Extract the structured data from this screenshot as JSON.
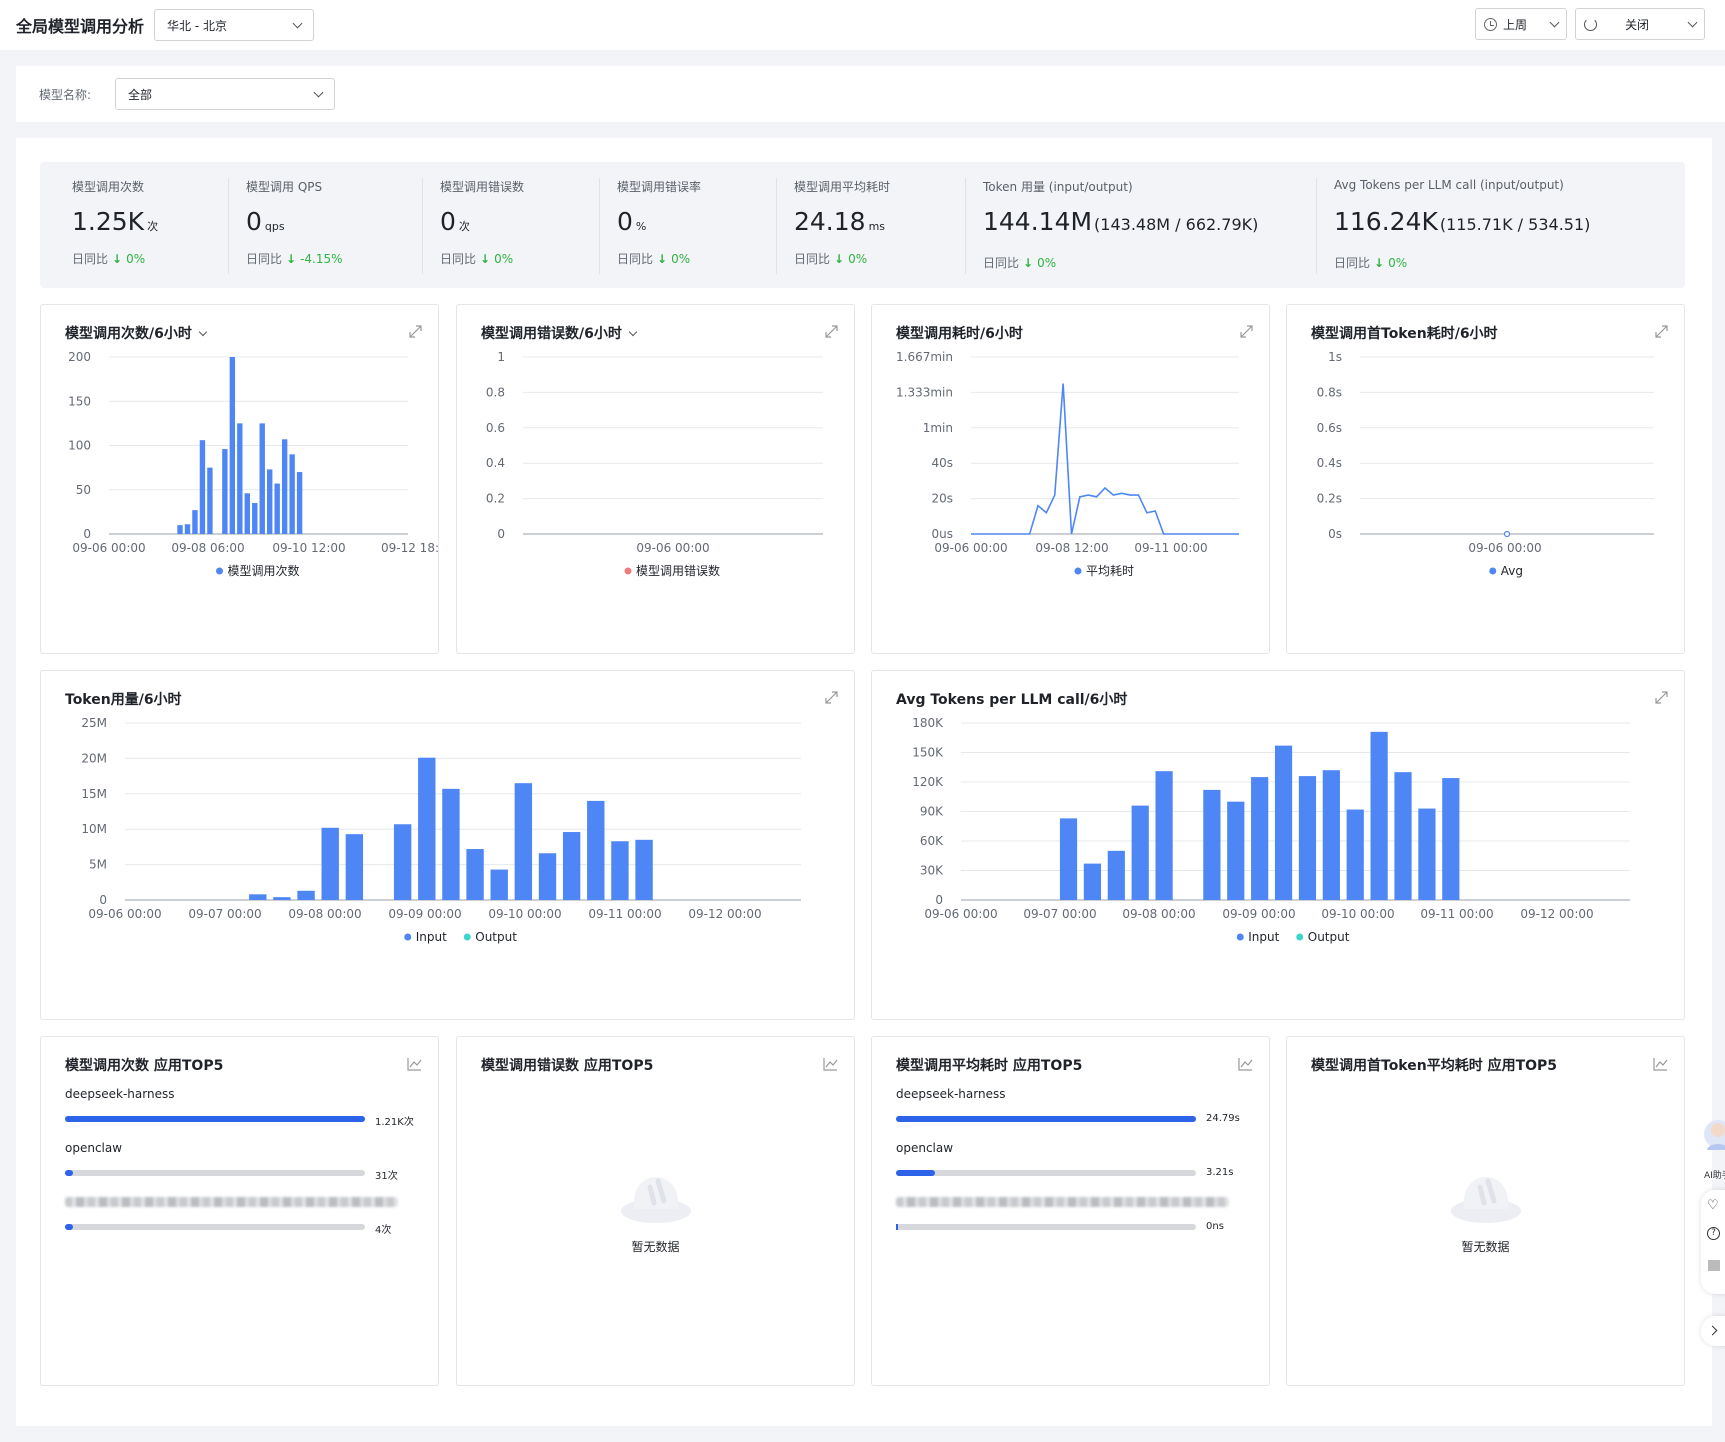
{
  "header": {
    "title": "全局模型调用分析",
    "region": "华北 - 北京",
    "time_range": "上周",
    "refresh": "关闭"
  },
  "filter": {
    "label": "模型名称:",
    "value": "全部"
  },
  "stats": [
    {
      "label": "模型调用次数",
      "value": "1.25K",
      "unit": "次",
      "cmp_label": "日同比",
      "cmp": "0%"
    },
    {
      "label": "模型调用 QPS",
      "value": "0",
      "unit": "qps",
      "cmp_label": "日同比",
      "cmp": "-4.15%"
    },
    {
      "label": "模型调用错误数",
      "value": "0",
      "unit": "次",
      "cmp_label": "日同比",
      "cmp": "0%"
    },
    {
      "label": "模型调用错误率",
      "value": "0",
      "unit": "%",
      "cmp_label": "日同比",
      "cmp": "0%"
    },
    {
      "label": "模型调用平均耗时",
      "value": "24.18",
      "unit": "ms",
      "cmp_label": "日同比",
      "cmp": "0%"
    },
    {
      "label": "Token 用量 (input/output)",
      "value": "144.14M",
      "unit": "(143.48M / 662.79K)",
      "cmp_label": "日同比",
      "cmp": "0%"
    },
    {
      "label": "Avg Tokens per LLM call (input/output)",
      "value": "116.24K",
      "unit": "(115.71K / 534.51)",
      "cmp_label": "日同比",
      "cmp": "0%"
    }
  ],
  "colors": {
    "primary": "#2c63e8",
    "bar": "#4e86f6",
    "error": "#f07b7b",
    "output": "#3dd4cf",
    "down": "#2fb342"
  },
  "charts": {
    "calls": {
      "title": "模型调用次数/6小时"
    },
    "errors": {
      "title": "模型调用错误数/6小时"
    },
    "latency": {
      "title": "模型调用耗时/6小时"
    },
    "ttft": {
      "title": "模型调用首Token耗时/6小时"
    },
    "tokens": {
      "title": "Token用量/6小时"
    },
    "avg_tokens": {
      "title": "Avg Tokens per LLM call/6小时"
    }
  },
  "chart_data": [
    {
      "id": "calls",
      "type": "bar",
      "x_ticks": [
        "09-06 00:00",
        "09-08 06:00",
        "09-10 12:00",
        "09-12 18:"
      ],
      "y_ticks": [
        "0",
        "50",
        "100",
        "150",
        "200"
      ],
      "ylim": [
        0,
        200
      ],
      "series": [
        {
          "name": "模型调用次数",
          "color": "#4e86f6",
          "values": [
            0,
            0,
            0,
            0,
            0,
            0,
            0,
            0,
            0,
            10,
            11,
            27,
            106,
            75,
            0,
            96,
            200,
            125,
            46,
            35,
            125,
            73,
            57,
            107,
            90,
            70,
            0,
            0,
            0,
            0,
            0,
            0,
            0,
            0,
            0,
            0,
            0,
            0,
            0,
            0
          ]
        }
      ],
      "legend": [
        "模型调用次数"
      ],
      "grid": true
    },
    {
      "id": "errors",
      "type": "line",
      "x_ticks": [
        "09-06 00:00"
      ],
      "y_ticks": [
        "0",
        "0.2",
        "0.4",
        "0.6",
        "0.8",
        "1"
      ],
      "ylim": [
        0,
        1
      ],
      "series": [
        {
          "name": "模型调用错误数",
          "color": "#f07b7b",
          "values": []
        }
      ],
      "legend": [
        "模型调用错误数"
      ],
      "grid": true
    },
    {
      "id": "latency",
      "type": "line",
      "x_ticks": [
        "09-06 00:00",
        "09-08 12:00",
        "09-11 00:00"
      ],
      "y_ticks": [
        "0us",
        "20s",
        "40s",
        "1min",
        "1.333min",
        "1.667min"
      ],
      "ylim": [
        0,
        100
      ],
      "series": [
        {
          "name": "平均耗时",
          "color": "#4e86f6",
          "values": [
            0,
            0,
            0,
            0,
            0,
            0,
            0,
            0,
            16,
            12,
            22,
            85,
            0,
            21,
            22,
            21,
            26,
            22,
            23,
            22,
            22,
            12,
            13,
            0,
            0,
            0,
            0,
            0,
            0,
            0,
            0,
            0,
            0
          ]
        }
      ],
      "legend": [
        "平均耗时"
      ],
      "grid": true
    },
    {
      "id": "ttft",
      "type": "line",
      "x_ticks": [
        "09-06 00:00"
      ],
      "y_ticks": [
        "0s",
        "0.2s",
        "0.4s",
        "0.6s",
        "0.8s",
        "1s"
      ],
      "ylim": [
        0,
        1
      ],
      "series": [
        {
          "name": "Avg",
          "color": "#4e86f6",
          "values": [
            0
          ]
        }
      ],
      "legend": [
        "Avg"
      ],
      "grid": true
    },
    {
      "id": "tokens",
      "type": "bar",
      "x_ticks": [
        "09-06 00:00",
        "09-07 00:00",
        "09-08 00:00",
        "09-09 00:00",
        "09-10 00:00",
        "09-11 00:00",
        "09-12 00:00"
      ],
      "y_ticks": [
        "0",
        "5M",
        "10M",
        "15M",
        "20M",
        "25M"
      ],
      "ylim": [
        0,
        25
      ],
      "series": [
        {
          "name": "Input",
          "color": "#4e86f6",
          "values": [
            0,
            0,
            0,
            0,
            0,
            0.8,
            0.4,
            1.3,
            10.2,
            9.3,
            0,
            10.7,
            20.1,
            15.7,
            7.2,
            4.3,
            16.5,
            6.6,
            9.6,
            14,
            8.3,
            8.5,
            0,
            0,
            0,
            0,
            0,
            0
          ]
        },
        {
          "name": "Output",
          "color": "#3dd4cf",
          "values": []
        }
      ],
      "legend": [
        "Input",
        "Output"
      ],
      "grid": true
    },
    {
      "id": "avg_tokens",
      "type": "bar",
      "x_ticks": [
        "09-06 00:00",
        "09-07 00:00",
        "09-08 00:00",
        "09-09 00:00",
        "09-10 00:00",
        "09-11 00:00",
        "09-12 00:00"
      ],
      "y_ticks": [
        "0",
        "30K",
        "60K",
        "90K",
        "120K",
        "150K",
        "180K"
      ],
      "ylim": [
        0,
        180
      ],
      "series": [
        {
          "name": "Input",
          "color": "#4e86f6",
          "values": [
            0,
            0,
            0,
            0,
            83,
            37,
            50,
            96,
            131,
            0,
            112,
            100,
            125,
            157,
            126,
            132,
            92,
            171,
            130,
            93,
            124,
            0,
            0,
            0,
            0,
            0,
            0,
            0
          ]
        },
        {
          "name": "Output",
          "color": "#3dd4cf",
          "values": []
        }
      ],
      "legend": [
        "Input",
        "Output"
      ],
      "grid": true
    }
  ],
  "top5": {
    "calls": {
      "title": "模型调用次数 应用TOP5",
      "items": [
        {
          "name": "deepseek-harness",
          "value": "1.21K次",
          "fraction": 1.0
        },
        {
          "name": "openclaw",
          "value": "31次",
          "fraction": 0.026
        },
        {
          "name": "",
          "value": "4次",
          "fraction": 0.004
        }
      ]
    },
    "errors": {
      "title": "模型调用错误数 应用TOP5",
      "empty": "暂无数据"
    },
    "latency": {
      "title": "模型调用平均耗时 应用TOP5",
      "items": [
        {
          "name": "deepseek-harness",
          "value": "24.79s",
          "fraction": 1.0
        },
        {
          "name": "openclaw",
          "value": "3.21s",
          "fraction": 0.13
        },
        {
          "name": "",
          "value": "0ns",
          "fraction": 0
        }
      ]
    },
    "ttft": {
      "title": "模型调用首Token平均耗时 应用TOP5",
      "empty": "暂无数据"
    }
  },
  "assistant": {
    "label": "AI助手"
  }
}
